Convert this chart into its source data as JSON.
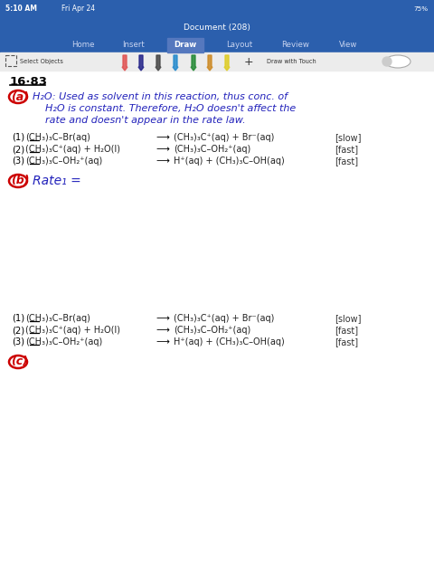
{
  "status_bg": "#2b5fad",
  "status_time": "5:10 AM",
  "status_day": "Fri Apr 24",
  "status_battery": "75%",
  "toolbar_bg": "#2b5fad",
  "tab_names": [
    "Home",
    "Insert",
    "Draw",
    "Layout",
    "Review",
    "View"
  ],
  "active_tab": "Draw",
  "subtoolbar_bg": "#ececec",
  "page_bg": "#ffffff",
  "problem_num": "16·83",
  "part_a_color": "#cc0000",
  "part_a_text_color": "#2222bb",
  "part_a_lines": [
    "H₂O: Used as solvent in this reaction, thus conc. of",
    "H₂O is constant. Therefore, H₂O doesn't affect the",
    "rate and doesn't appear in the rate law."
  ],
  "rxn_top": [
    {
      "n": "(1)",
      "left": "(CH₃)₃C–Br(aq)",
      "arrow": "⟶",
      "right": "(CH₃)₃C⁺(aq) + Br⁻(aq)",
      "rate": "[slow]"
    },
    {
      "n": "(2)",
      "left": "(CH₃)₃C⁺(aq) + H₂O(l)",
      "arrow": "⟶",
      "right": "(CH₃)₃C–OH₂⁺(aq)",
      "rate": "[fast]"
    },
    {
      "n": "(3)",
      "left": "(CH₃)₃C–OH₂⁺(aq)",
      "arrow": "⟶",
      "right": "H⁺(aq) + (CH₃)₃C–OH(aq)",
      "rate": "[fast]"
    }
  ],
  "part_b_color": "#cc0000",
  "part_b_text_color": "#2222bb",
  "part_b_text": "Rate₁ =",
  "rxn_bot": [
    {
      "n": "(1)",
      "left": "(CH₃)₃C–Br(aq)",
      "arrow": "⟶",
      "right": "(CH₃)₃C⁺(aq) + Br⁻(aq)",
      "rate": "[slow]"
    },
    {
      "n": "(2)",
      "left": "(CH₃)₃C⁺(aq) + H₂O(l)",
      "arrow": "⟶",
      "right": "(CH₃)₃C–OH₂⁺(aq)",
      "rate": "[fast]"
    },
    {
      "n": "(3)",
      "left": "(CH₃)₃C–OH₂⁺(aq)",
      "arrow": "⟶",
      "right": "H⁺(aq) + (CH₃)₃C–OH(aq)",
      "rate": "[fast]"
    }
  ],
  "part_c_color": "#cc0000"
}
